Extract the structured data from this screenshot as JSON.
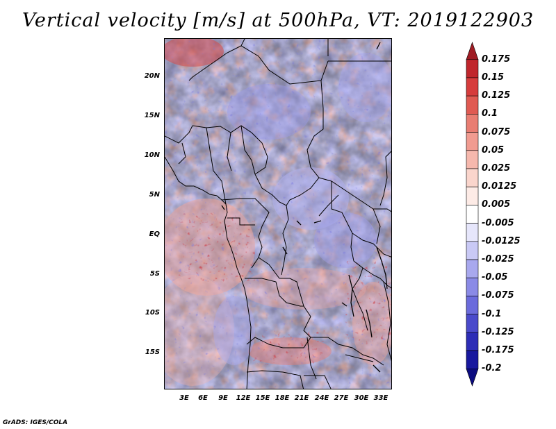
{
  "title": "Vertical velocity [m/s] at 500hPa, VT: 2019122903",
  "credit": "GrADS: IGES/COLA",
  "map": {
    "lat_labels": [
      "20N",
      "15N",
      "10N",
      "5N",
      "EQ",
      "5S",
      "10S",
      "15S"
    ],
    "lon_labels": [
      "3E",
      "6E",
      "9E",
      "12E",
      "15E",
      "18E",
      "21E",
      "24E",
      "27E",
      "30E",
      "33E"
    ]
  },
  "colorbar": {
    "labels": [
      "0.175",
      "0.15",
      "0.125",
      "0.1",
      "0.075",
      "0.05",
      "0.025",
      "0.0125",
      "0.005",
      "-0.005",
      "-0.0125",
      "-0.025",
      "-0.05",
      "-0.075",
      "-0.1",
      "-0.125",
      "-0.175",
      "-0.2"
    ],
    "colors": [
      "#a01c24",
      "#c0262c",
      "#d63c3c",
      "#e05a52",
      "#e97d72",
      "#f19b90",
      "#f6b8ad",
      "#fad5cc",
      "#fdebe6",
      "#ffffff",
      "#e6e6fb",
      "#c9c9f5",
      "#a8a8ee",
      "#8a8ae6",
      "#6b6bdc",
      "#4a4acb",
      "#2d2db6",
      "#18189e",
      "#0c0c80"
    ]
  }
}
